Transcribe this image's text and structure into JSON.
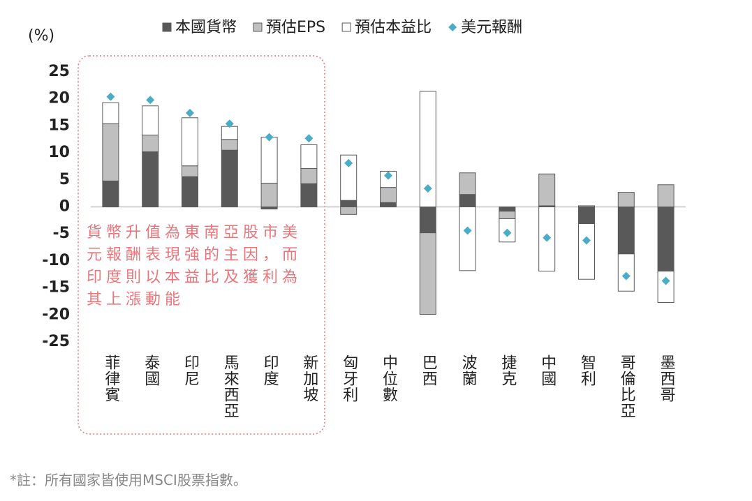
{
  "chart_data": {
    "type": "bar",
    "stacked": true,
    "y_label": "(%)",
    "annotation": "貨幣升值為東南亞股市美元報酬表現強的主因，而印度則以本益比及獲利為其上漲動能",
    "footnote": "*註：所有國家皆使用MSCI股票指數。",
    "categories": [
      "菲律賓",
      "泰國",
      "印尼",
      "馬來西亞",
      "印度",
      "新加坡",
      "匈牙利",
      "中位數",
      "巴西",
      "波蘭",
      "捷克",
      "中國",
      "智利",
      "哥倫比亞",
      "墨西哥"
    ],
    "series": [
      {
        "name": "本國貨幣",
        "color": "#595959",
        "values": [
          4.8,
          10.2,
          5.6,
          10.5,
          -0.4,
          4.3,
          1.2,
          0.8,
          -4.8,
          2.3,
          -0.8,
          0.2,
          -3.1,
          -8.7,
          -11.9
        ]
      },
      {
        "name": "預估EPS",
        "color": "#bfbfbf",
        "values": [
          10.6,
          3.1,
          2.0,
          2.0,
          4.4,
          2.8,
          -1.4,
          2.8,
          -15.1,
          4.0,
          -1.4,
          5.9,
          0.2,
          2.7,
          4.1
        ]
      },
      {
        "name": "預估本益比",
        "color": "#ffffff",
        "values": [
          3.9,
          5.4,
          8.9,
          2.4,
          8.5,
          4.4,
          8.4,
          3.0,
          21.4,
          -11.8,
          -4.3,
          -11.9,
          -10.3,
          -6.9,
          -5.8
        ]
      },
      {
        "name": "美元報酬",
        "type": "scatter",
        "color": "#4bacc6",
        "values": [
          20.4,
          19.8,
          17.4,
          15.4,
          12.9,
          12.7,
          8.1,
          5.8,
          3.4,
          -4.4,
          -4.8,
          -5.7,
          -6.2,
          -12.8,
          -13.7
        ]
      }
    ],
    "ylim": [
      -25,
      25
    ],
    "yticks": [
      25,
      20,
      15,
      10,
      5,
      0,
      -5,
      -10,
      -15,
      -20,
      -25
    ]
  }
}
